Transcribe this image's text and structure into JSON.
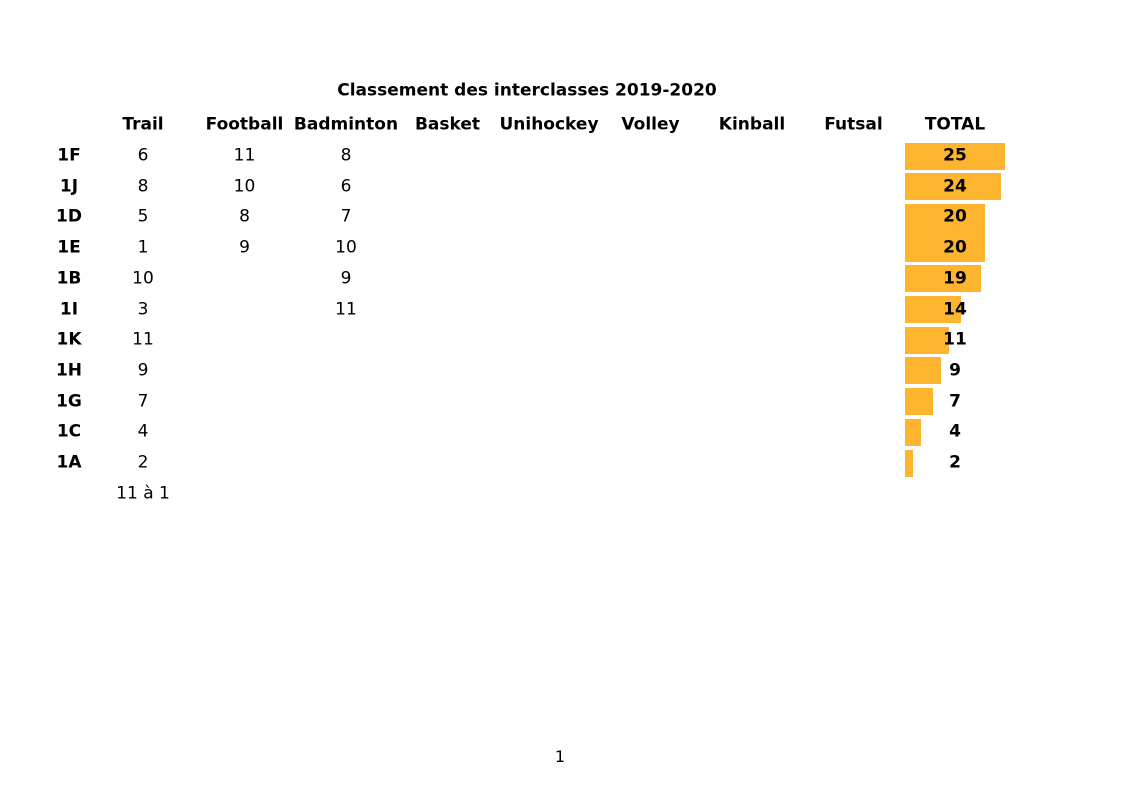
{
  "page": {
    "number": "1"
  },
  "chart_data": {
    "type": "bar",
    "title": "Classement des interclasses 2019-2020",
    "columns": [
      "Trail",
      "Football",
      "Badminton",
      "Basket",
      "Unihockey",
      "Volley",
      "Kinball",
      "Futsal"
    ],
    "total_label": "TOTAL",
    "bar_color": "#FDB530",
    "orientation": "horizontal",
    "value_range": [
      0,
      25
    ],
    "grid": false,
    "legend": "none",
    "categories": [
      "1F",
      "1J",
      "1D",
      "1E",
      "1B",
      "1I",
      "1K",
      "1H",
      "1G",
      "1C",
      "1A"
    ],
    "series": [
      {
        "name": "Trail",
        "values": [
          6,
          8,
          5,
          1,
          10,
          3,
          11,
          9,
          7,
          4,
          2
        ]
      },
      {
        "name": "Football",
        "values": [
          11,
          10,
          8,
          9,
          null,
          null,
          null,
          null,
          null,
          null,
          null
        ]
      },
      {
        "name": "Badminton",
        "values": [
          8,
          6,
          7,
          10,
          9,
          11,
          null,
          null,
          null,
          null,
          null
        ]
      },
      {
        "name": "Basket",
        "values": [
          null,
          null,
          null,
          null,
          null,
          null,
          null,
          null,
          null,
          null,
          null
        ]
      },
      {
        "name": "Unihockey",
        "values": [
          null,
          null,
          null,
          null,
          null,
          null,
          null,
          null,
          null,
          null,
          null
        ]
      },
      {
        "name": "Volley",
        "values": [
          null,
          null,
          null,
          null,
          null,
          null,
          null,
          null,
          null,
          null,
          null
        ]
      },
      {
        "name": "Kinball",
        "values": [
          null,
          null,
          null,
          null,
          null,
          null,
          null,
          null,
          null,
          null,
          null
        ]
      },
      {
        "name": "Futsal",
        "values": [
          null,
          null,
          null,
          null,
          null,
          null,
          null,
          null,
          null,
          null,
          null
        ]
      }
    ],
    "rows": [
      {
        "label": "1F",
        "values": [
          "6",
          "11",
          "8",
          "",
          "",
          "",
          "",
          ""
        ],
        "total": 25
      },
      {
        "label": "1J",
        "values": [
          "8",
          "10",
          "6",
          "",
          "",
          "",
          "",
          ""
        ],
        "total": 24
      },
      {
        "label": "1D",
        "values": [
          "5",
          "8",
          "7",
          "",
          "",
          "",
          "",
          ""
        ],
        "total": 20
      },
      {
        "label": "1E",
        "values": [
          "1",
          "9",
          "10",
          "",
          "",
          "",
          "",
          ""
        ],
        "total": 20
      },
      {
        "label": "1B",
        "values": [
          "10",
          "",
          "9",
          "",
          "",
          "",
          "",
          ""
        ],
        "total": 19
      },
      {
        "label": "1I",
        "values": [
          "3",
          "",
          "11",
          "",
          "",
          "",
          "",
          ""
        ],
        "total": 14
      },
      {
        "label": "1K",
        "values": [
          "11",
          "",
          "",
          "",
          "",
          "",
          "",
          ""
        ],
        "total": 11
      },
      {
        "label": "1H",
        "values": [
          "9",
          "",
          "",
          "",
          "",
          "",
          "",
          ""
        ],
        "total": 9
      },
      {
        "label": "1G",
        "values": [
          "7",
          "",
          "",
          "",
          "",
          "",
          "",
          ""
        ],
        "total": 7
      },
      {
        "label": "1C",
        "values": [
          "4",
          "",
          "",
          "",
          "",
          "",
          "",
          ""
        ],
        "total": 4
      },
      {
        "label": "1A",
        "values": [
          "2",
          "",
          "",
          "",
          "",
          "",
          "",
          ""
        ],
        "total": 2
      }
    ],
    "footer_note": "11 à 1"
  }
}
